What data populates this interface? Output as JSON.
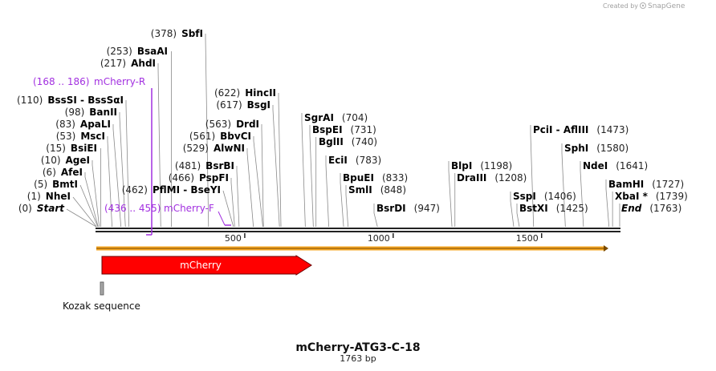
{
  "credit": {
    "text": "Created by",
    "brand": "SnapGene"
  },
  "title": "mCherry-ATG3-C-18",
  "length": "1763 bp",
  "total_bp": 1763,
  "ticks": [
    {
      "bp": 500,
      "label": "500"
    },
    {
      "bp": 1000,
      "label": "1000"
    },
    {
      "bp": 1500,
      "label": "1500"
    }
  ],
  "sites": [
    {
      "pos": "(0)",
      "name": "Start",
      "bp": 0,
      "italic": true
    },
    {
      "pos": "(1)",
      "name": "NheI",
      "bp": 1
    },
    {
      "pos": "(5)",
      "name": "BmtI",
      "bp": 5
    },
    {
      "pos": "(6)",
      "name": "AfeI",
      "bp": 6
    },
    {
      "pos": "(10)",
      "name": "AgeI",
      "bp": 10
    },
    {
      "pos": "(15)",
      "name": "BsiEI",
      "bp": 15
    },
    {
      "pos": "(53)",
      "name": "MscI",
      "bp": 53
    },
    {
      "pos": "(83)",
      "name": "ApaLI",
      "bp": 83
    },
    {
      "pos": "(98)",
      "name": "BanII",
      "bp": 98
    },
    {
      "pos": "(110)",
      "name": "BssSI  -  BssSαI",
      "bp": 110
    },
    {
      "pos": "(217)",
      "name": "AhdI",
      "bp": 217
    },
    {
      "pos": "(253)",
      "name": "BsaAI",
      "bp": 253
    },
    {
      "pos": "(378)",
      "name": "SbfI",
      "bp": 378
    },
    {
      "pos": "(462)",
      "name": "PflMI  -  BseYI",
      "bp": 462
    },
    {
      "pos": "(466)",
      "name": "PspFI",
      "bp": 466
    },
    {
      "pos": "(481)",
      "name": "BsrBI",
      "bp": 481
    },
    {
      "pos": "(529)",
      "name": "AlwNI",
      "bp": 529
    },
    {
      "pos": "(561)",
      "name": "BbvCI",
      "bp": 561
    },
    {
      "pos": "(563)",
      "name": "DrdI",
      "bp": 563
    },
    {
      "pos": "(617)",
      "name": "BsgI",
      "bp": 617
    },
    {
      "pos": "(622)",
      "name": "HincII",
      "bp": 622
    },
    {
      "pos": "(704)",
      "name": "SgrAI",
      "bp": 704,
      "right": true
    },
    {
      "pos": "(731)",
      "name": "BspEI",
      "bp": 731,
      "right": true
    },
    {
      "pos": "(740)",
      "name": "BglII",
      "bp": 740,
      "right": true
    },
    {
      "pos": "(783)",
      "name": "EciI",
      "bp": 783,
      "right": true
    },
    {
      "pos": "(833)",
      "name": "BpuEI",
      "bp": 833,
      "right": true
    },
    {
      "pos": "(848)",
      "name": "SmlI",
      "bp": 848,
      "right": true
    },
    {
      "pos": "(947)",
      "name": "BsrDI",
      "bp": 947,
      "right": true
    },
    {
      "pos": "(1198)",
      "name": "BlpI",
      "bp": 1198,
      "right": true
    },
    {
      "pos": "(1208)",
      "name": "DraIII",
      "bp": 1208,
      "right": true
    },
    {
      "pos": "(1406)",
      "name": "SspI",
      "bp": 1406,
      "right": true
    },
    {
      "pos": "(1425)",
      "name": "BstXI",
      "bp": 1425,
      "right": true
    },
    {
      "pos": "(1473)",
      "name": "PciI  -  AflIII",
      "bp": 1473,
      "right": true
    },
    {
      "pos": "(1580)",
      "name": "SphI",
      "bp": 1580,
      "right": true
    },
    {
      "pos": "(1641)",
      "name": "NdeI",
      "bp": 1641,
      "right": true
    },
    {
      "pos": "(1727)",
      "name": "BamHI",
      "bp": 1727,
      "right": true
    },
    {
      "pos": "(1739)",
      "name": "XbaI *",
      "bp": 1739,
      "right": true
    },
    {
      "pos": "(1763)",
      "name": "End",
      "bp": 1763,
      "right": true,
      "italic": true
    }
  ],
  "primers": [
    {
      "range": "(168 .. 186)",
      "name": "mCherry-R"
    },
    {
      "range": "(436 .. 455)",
      "name": "mCherry-F"
    }
  ],
  "features": [
    {
      "name": "mCherry",
      "type": "CDS",
      "color": "#ff0000"
    },
    {
      "name": "Kozak sequence",
      "type": "misc",
      "color": "#a6a6a6"
    }
  ],
  "colors": {
    "primer": "#a230e0",
    "orf": "#f5a623"
  }
}
